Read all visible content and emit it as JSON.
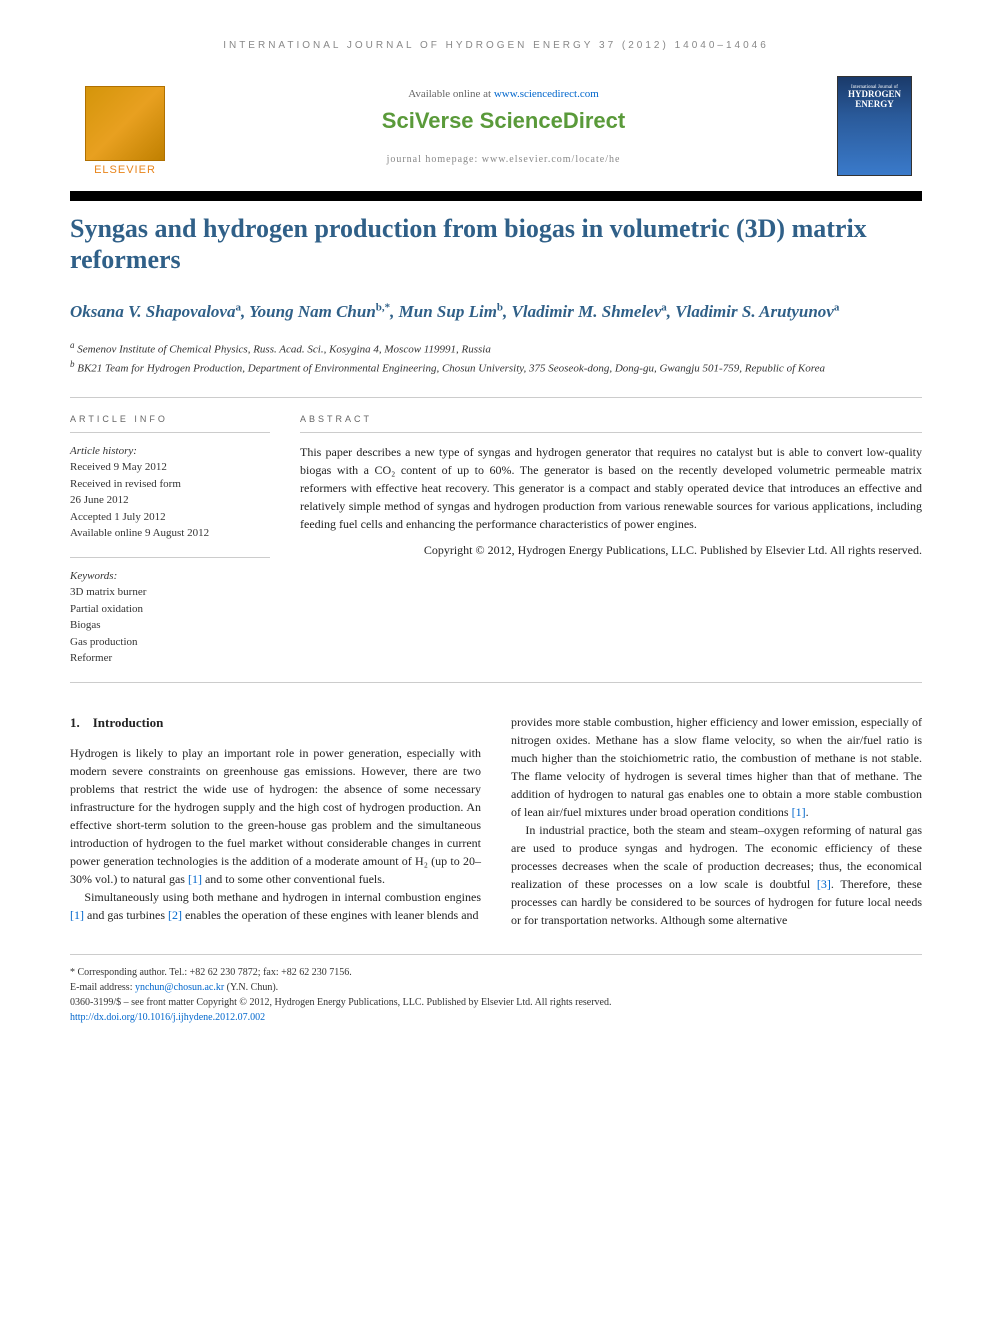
{
  "running_header": "INTERNATIONAL JOURNAL OF HYDROGEN ENERGY 37 (2012) 14040–14046",
  "masthead": {
    "elsevier": "ELSEVIER",
    "available_prefix": "Available online at ",
    "available_url": "www.sciencedirect.com",
    "sciverse": "SciVerse ScienceDirect",
    "homepage": "journal homepage: www.elsevier.com/locate/he",
    "cover_line1": "International Journal of",
    "cover_line2": "HYDROGEN",
    "cover_line3": "ENERGY"
  },
  "title": "Syngas and hydrogen production from biogas in volumetric (3D) matrix reformers",
  "authors_html": "Oksana V. Shapovalova<sup>a</sup>, Young Nam Chun<sup>b,*</sup>, Mun Sup Lim<sup>b</sup>, Vladimir M. Shmelev<sup>a</sup>, Vladimir S. Arutyunov<sup>a</sup>",
  "affiliations": {
    "a": "Semenov Institute of Chemical Physics, Russ. Acad. Sci., Kosygina 4, Moscow 119991, Russia",
    "b": "BK21 Team for Hydrogen Production, Department of Environmental Engineering, Chosun University, 375 Seoseok-dong, Dong-gu, Gwangju 501-759, Republic of Korea"
  },
  "info": {
    "heading": "ARTICLE INFO",
    "history_label": "Article history:",
    "received": "Received 9 May 2012",
    "revised1": "Received in revised form",
    "revised2": "26 June 2012",
    "accepted": "Accepted 1 July 2012",
    "online": "Available online 9 August 2012",
    "keywords_label": "Keywords:",
    "keywords": [
      "3D matrix burner",
      "Partial oxidation",
      "Biogas",
      "Gas production",
      "Reformer"
    ]
  },
  "abstract": {
    "heading": "ABSTRACT",
    "text": "This paper describes a new type of syngas and hydrogen generator that requires no catalyst but is able to convert low-quality biogas with a CO₂ content of up to 60%. The generator is based on the recently developed volumetric permeable matrix reformers with effective heat recovery. This generator is a compact and stably operated device that introduces an effective and relatively simple method of syngas and hydrogen production from various renewable sources for various applications, including feeding fuel cells and enhancing the performance characteristics of power engines.",
    "copyright": "Copyright © 2012, Hydrogen Energy Publications, LLC. Published by Elsevier Ltd. All rights reserved."
  },
  "body": {
    "section_num": "1.",
    "section_title": "Introduction",
    "col1_p1": "Hydrogen is likely to play an important role in power generation, especially with modern severe constraints on greenhouse gas emissions. However, there are two problems that restrict the wide use of hydrogen: the absence of some necessary infrastructure for the hydrogen supply and the high cost of hydrogen production. An effective short-term solution to the green-house gas problem and the simultaneous introduction of hydrogen to the fuel market without considerable changes in current power generation technologies is the addition of a moderate amount of H₂ (up to 20–30% vol.) to natural gas [1] and to some other conventional fuels.",
    "col1_p2": "Simultaneously using both methane and hydrogen in internal combustion engines [1] and gas turbines [2] enables the operation of these engines with leaner blends and",
    "col2_p1": "provides more stable combustion, higher efficiency and lower emission, especially of nitrogen oxides. Methane has a slow flame velocity, so when the air/fuel ratio is much higher than the stoichiometric ratio, the combustion of methane is not stable. The flame velocity of hydrogen is several times higher than that of methane. The addition of hydrogen to natural gas enables one to obtain a more stable combustion of lean air/fuel mixtures under broad operation conditions [1].",
    "col2_p2": "In industrial practice, both the steam and steam–oxygen reforming of natural gas are used to produce syngas and hydrogen. The economic efficiency of these processes decreases when the scale of production decreases; thus, the economical realization of these processes on a low scale is doubtful [3]. Therefore, these processes can hardly be considered to be sources of hydrogen for future local needs or for transportation networks. Although some alternative"
  },
  "footer": {
    "corr": "* Corresponding author. Tel.: +82 62 230 7872; fax: +82 62 230 7156.",
    "email_label": "E-mail address: ",
    "email": "ynchun@chosun.ac.kr",
    "email_suffix": " (Y.N. Chun).",
    "copyright": "0360-3199/$ – see front matter Copyright © 2012, Hydrogen Energy Publications, LLC. Published by Elsevier Ltd. All rights reserved.",
    "doi": "http://dx.doi.org/10.1016/j.ijhydene.2012.07.002"
  }
}
